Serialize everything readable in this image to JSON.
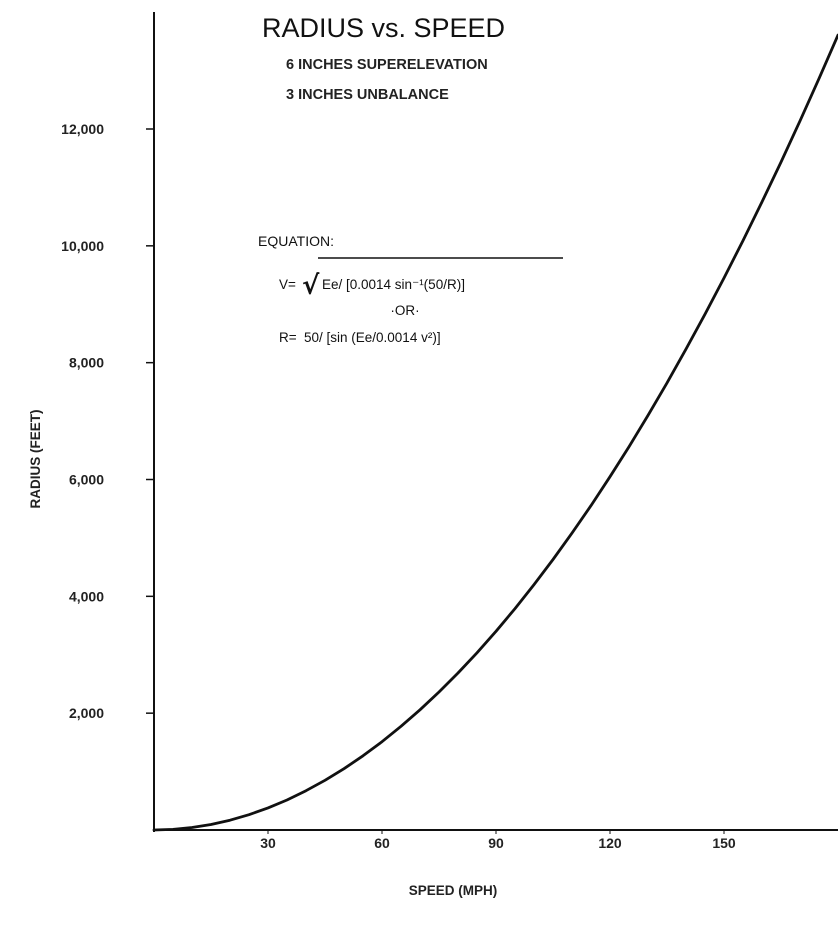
{
  "chart_data": {
    "type": "line",
    "title": "RADIUS vs. SPEED",
    "subtitle": [
      "6 INCHES SUPERELEVATION",
      "3 INCHES UNBALANCE"
    ],
    "xlabel": "SPEED (MPH)",
    "ylabel": "RADIUS (FEET)",
    "x_ticks": [
      30,
      60,
      90,
      120,
      150
    ],
    "x_tick_labels": [
      "30",
      "60",
      "90",
      "120",
      "150"
    ],
    "y_ticks": [
      2000,
      4000,
      6000,
      8000,
      10000,
      12000
    ],
    "y_tick_labels": [
      "2,000",
      "4,000",
      "6,000",
      "8,000",
      "10,000",
      "12,000"
    ],
    "xlim": [
      0,
      180
    ],
    "ylim": [
      0,
      14000
    ],
    "grid": false,
    "series": [
      {
        "x": [
          0,
          5,
          10,
          15,
          20,
          25,
          30,
          35,
          40,
          45,
          50,
          55,
          60,
          65,
          70,
          75,
          80,
          85,
          90,
          95,
          100,
          105,
          110,
          115,
          120,
          125,
          130,
          135,
          140,
          145,
          150,
          155,
          160,
          165,
          170,
          175,
          180
        ],
        "y": [
          0,
          10,
          42,
          94,
          168,
          262,
          378,
          514,
          672,
          850,
          1050,
          1270,
          1512,
          1775,
          2058,
          2363,
          2688,
          3034,
          3402,
          3790,
          4200,
          4630,
          5082,
          5554,
          6048,
          6562,
          7098,
          7654,
          8232,
          8830,
          9450,
          10090,
          10752,
          11434,
          12138,
          12862,
          13608
        ],
        "color": "#111111"
      }
    ],
    "annotation": {
      "heading": "EQUATION:",
      "v_lhs": "V=",
      "v_text": "Ee/ [0.0014 sin⁻¹(50/R)]",
      "or_text": "·OR·",
      "r_lhs": "R=",
      "r_text": "50/ [sin (Ee/0.0014 v²)]"
    }
  }
}
